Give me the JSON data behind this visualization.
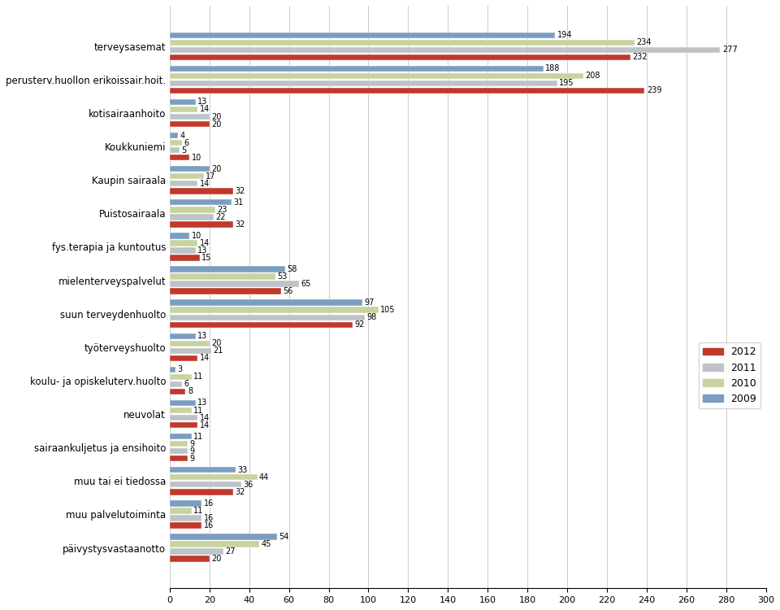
{
  "categories": [
    "terveysasemat",
    "perusterv.huollon erikoissair.hoit.",
    "kotisairaanhoito",
    "Koukkuniemi",
    "Kaupin sairaala",
    "Puistosairaala",
    "fys.terapia ja kuntoutus",
    "mielenterveyspalvelut",
    "suun terveydenhuolto",
    "työterveyshuolto",
    "koulu- ja opiskeluterv.huolto",
    "neuvolat",
    "sairaankuljetus ja ensihoito",
    "muu tai ei tiedossa",
    "muu palvelutoiminta",
    "päivystysvastaanotto"
  ],
  "values_2012": [
    232,
    239,
    20,
    10,
    32,
    32,
    15,
    56,
    92,
    14,
    8,
    14,
    9,
    32,
    16,
    20
  ],
  "values_2011": [
    277,
    195,
    20,
    5,
    14,
    22,
    13,
    65,
    98,
    21,
    6,
    14,
    9,
    36,
    16,
    27
  ],
  "values_2010": [
    234,
    208,
    14,
    6,
    17,
    23,
    14,
    53,
    105,
    20,
    11,
    11,
    9,
    44,
    11,
    45
  ],
  "values_2009": [
    194,
    188,
    13,
    4,
    20,
    31,
    10,
    58,
    97,
    13,
    3,
    13,
    11,
    33,
    16,
    54
  ],
  "color_2012": "#C0392B",
  "color_2011": "#BDC3C7",
  "color_2010": "#C8D3A0",
  "color_2009": "#7B9EC0",
  "xlim": [
    0,
    300
  ],
  "xticks": [
    0,
    20,
    40,
    60,
    80,
    100,
    120,
    140,
    160,
    180,
    200,
    220,
    240,
    260,
    280,
    300
  ],
  "legend_labels": [
    "2012",
    "2011",
    "2010",
    "2009"
  ],
  "bar_height": 0.18,
  "bar_gap": 0.04,
  "figure_width": 9.6,
  "figure_height": 7.5
}
